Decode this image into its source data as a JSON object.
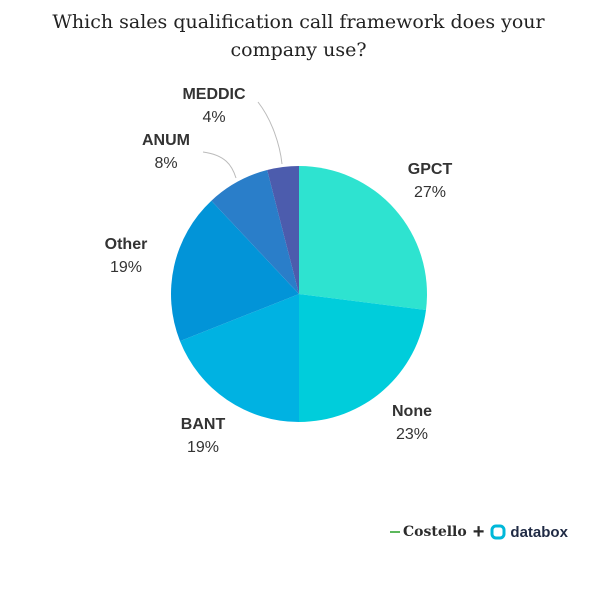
{
  "title": "Which sales qualification call framework does your company use?",
  "chart_data": {
    "type": "pie",
    "title": "Which sales qualification call framework does your company use?",
    "slices": [
      {
        "label": "GPCT",
        "value": 27,
        "value_label": "27%",
        "color": "#2ee3d0"
      },
      {
        "label": "None",
        "value": 23,
        "value_label": "23%",
        "color": "#00cddb"
      },
      {
        "label": "BANT",
        "value": 19,
        "value_label": "19%",
        "color": "#00b2e2"
      },
      {
        "label": "Other",
        "value": 19,
        "value_label": "19%",
        "color": "#0294d8"
      },
      {
        "label": "ANUM",
        "value": 8,
        "value_label": "8%",
        "color": "#2a7ec9"
      },
      {
        "label": "MEDDIC",
        "value": 4,
        "value_label": "4%",
        "color": "#4c5cad"
      }
    ]
  },
  "footer": {
    "brand1": "Costello",
    "plus": "+",
    "brand2": "databox",
    "brand2_color": "#00b8d9"
  }
}
